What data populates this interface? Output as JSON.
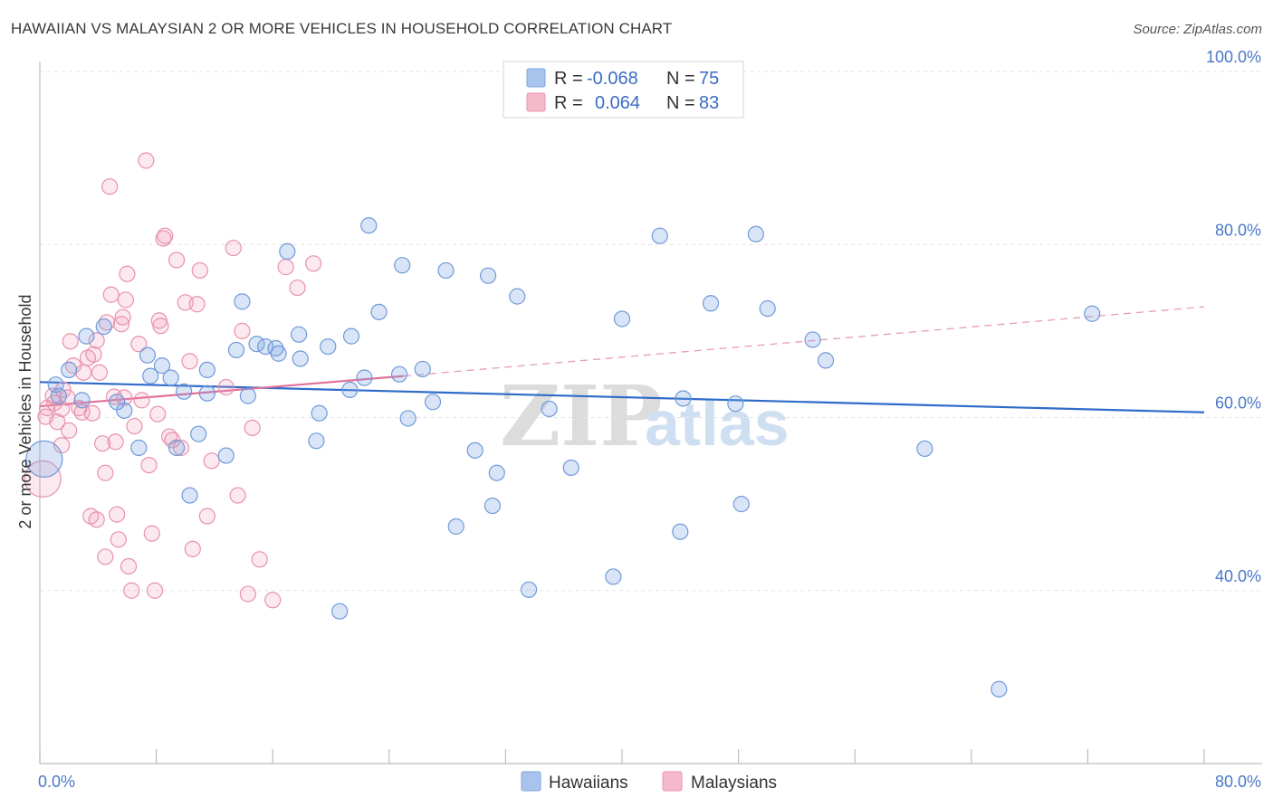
{
  "header": {
    "title": "HAWAIIAN VS MALAYSIAN 2 OR MORE VEHICLES IN HOUSEHOLD CORRELATION CHART",
    "source": "Source: ZipAtlas.com"
  },
  "watermark": {
    "zip": "ZIP",
    "atlas": "atlas"
  },
  "legend": {
    "rows": [
      {
        "r_label": "R =",
        "r_value": "-0.068",
        "n_label": "N =",
        "n_value": "75",
        "color": "#a8c4ec"
      },
      {
        "r_label": "R =",
        "r_value": "0.064",
        "n_label": "N =",
        "n_value": "83",
        "color": "#f6b9cc"
      }
    ]
  },
  "bottom_legend": [
    {
      "label": "Hawaiians",
      "color": "#a8c4ec"
    },
    {
      "label": "Malaysians",
      "color": "#f6b9cc"
    }
  ],
  "colors": {
    "hawaiian_fill": "rgba(120,160,225,0.28)",
    "hawaiian_stroke": "#6f9ad9",
    "hawaiian_line": "#2f6cc9",
    "malaysian_fill": "rgba(240,150,180,0.22)",
    "malaysian_stroke": "#e892ad",
    "malaysian_line": "#e0709a",
    "grid": "#e3e3e3",
    "axis": "#bdbdbd",
    "tick_text": "#4a78c9"
  },
  "chart_data": {
    "type": "scatter",
    "title": "HAWAIIAN VS MALAYSIAN 2 OR MORE VEHICLES IN HOUSEHOLD CORRELATION CHART",
    "xlabel": "",
    "ylabel": "2 or more Vehicles in Household",
    "xlim": [
      0,
      80
    ],
    "ylim": [
      20,
      100
    ],
    "x_tick_labels": [
      "0.0%",
      "80.0%"
    ],
    "y_ticks": [
      40,
      60,
      80,
      100
    ],
    "y_tick_labels": [
      "40.0%",
      "60.0%",
      "80.0%",
      "100.0%"
    ],
    "grid": true,
    "legend_position": "top-center",
    "series": [
      {
        "name": "Hawaiians",
        "R": -0.068,
        "N": 75,
        "trend": {
          "x": [
            0,
            80
          ],
          "y": [
            64.1,
            60.6
          ],
          "style": "solid"
        },
        "points": [
          [
            0.3,
            55.2,
            "large"
          ],
          [
            1.1,
            63.8
          ],
          [
            1.3,
            62.5
          ],
          [
            2.0,
            65.5
          ],
          [
            2.9,
            62.0
          ],
          [
            3.2,
            69.4
          ],
          [
            4.4,
            70.5
          ],
          [
            5.3,
            61.8
          ],
          [
            5.8,
            60.8
          ],
          [
            6.8,
            56.5
          ],
          [
            7.4,
            67.2
          ],
          [
            7.6,
            64.8
          ],
          [
            8.4,
            66.0
          ],
          [
            9.0,
            64.6
          ],
          [
            9.4,
            56.5
          ],
          [
            9.9,
            63.0
          ],
          [
            10.3,
            51.0
          ],
          [
            10.9,
            58.1
          ],
          [
            11.5,
            62.8
          ],
          [
            11.5,
            65.5
          ],
          [
            12.8,
            55.6
          ],
          [
            13.5,
            67.8
          ],
          [
            13.9,
            73.4
          ],
          [
            14.3,
            62.5
          ],
          [
            14.9,
            68.5
          ],
          [
            15.5,
            68.2
          ],
          [
            16.2,
            68.0
          ],
          [
            16.4,
            67.4
          ],
          [
            17.0,
            79.2
          ],
          [
            17.8,
            69.6
          ],
          [
            17.9,
            66.8
          ],
          [
            19.0,
            57.3
          ],
          [
            19.2,
            60.5
          ],
          [
            19.8,
            68.2
          ],
          [
            20.6,
            37.6
          ],
          [
            21.4,
            69.4
          ],
          [
            21.3,
            63.2
          ],
          [
            22.3,
            64.6
          ],
          [
            22.6,
            82.2
          ],
          [
            23.3,
            72.2
          ],
          [
            24.7,
            65.0
          ],
          [
            24.9,
            77.6
          ],
          [
            25.3,
            59.9
          ],
          [
            26.3,
            65.6
          ],
          [
            27.0,
            61.8
          ],
          [
            27.9,
            77.0
          ],
          [
            28.6,
            47.4
          ],
          [
            29.9,
            56.2
          ],
          [
            30.8,
            76.4
          ],
          [
            31.1,
            49.8
          ],
          [
            31.4,
            53.6
          ],
          [
            32.8,
            74.0
          ],
          [
            33.6,
            40.1
          ],
          [
            35.0,
            61.0
          ],
          [
            36.5,
            54.2
          ],
          [
            39.4,
            41.6
          ],
          [
            40.0,
            71.4
          ],
          [
            42.6,
            81.0
          ],
          [
            44.0,
            46.8
          ],
          [
            44.2,
            62.2
          ],
          [
            46.1,
            73.2
          ],
          [
            47.8,
            61.6
          ],
          [
            48.2,
            50.0
          ],
          [
            49.2,
            81.2
          ],
          [
            50.0,
            72.6
          ],
          [
            53.1,
            69.0
          ],
          [
            54.0,
            66.6
          ],
          [
            60.8,
            56.4
          ],
          [
            65.9,
            28.6
          ],
          [
            72.3,
            72.0
          ]
        ]
      },
      {
        "name": "Malaysians",
        "R": 0.064,
        "N": 83,
        "trend": {
          "x": [
            0,
            25
          ],
          "y": [
            61.3,
            64.8
          ],
          "style": "solid",
          "extension": {
            "x": [
              25,
              80
            ],
            "y": [
              64.8,
              72.8
            ],
            "style": "dashed"
          }
        },
        "points": [
          [
            0.2,
            52.9,
            "large"
          ],
          [
            0.4,
            60.1
          ],
          [
            0.5,
            61.1
          ],
          [
            0.9,
            62.5
          ],
          [
            1.0,
            61.7
          ],
          [
            1.2,
            59.5
          ],
          [
            1.5,
            56.8
          ],
          [
            1.5,
            61.0
          ],
          [
            1.6,
            63.2
          ],
          [
            1.9,
            62.3
          ],
          [
            2.0,
            58.5
          ],
          [
            2.1,
            68.8
          ],
          [
            2.3,
            66.0
          ],
          [
            2.7,
            61.1
          ],
          [
            2.9,
            60.6
          ],
          [
            3.0,
            65.2
          ],
          [
            3.3,
            66.9
          ],
          [
            3.5,
            48.6
          ],
          [
            3.6,
            60.5
          ],
          [
            3.7,
            67.3
          ],
          [
            3.9,
            68.9
          ],
          [
            3.9,
            48.2
          ],
          [
            4.1,
            65.2
          ],
          [
            4.3,
            57.0
          ],
          [
            4.5,
            53.6
          ],
          [
            4.5,
            43.9
          ],
          [
            4.6,
            71.0
          ],
          [
            4.8,
            86.7
          ],
          [
            4.9,
            74.2
          ],
          [
            5.1,
            62.4
          ],
          [
            5.2,
            57.2
          ],
          [
            5.3,
            48.8
          ],
          [
            5.4,
            45.9
          ],
          [
            5.6,
            70.8
          ],
          [
            5.7,
            71.6
          ],
          [
            5.8,
            62.3
          ],
          [
            5.9,
            73.6
          ],
          [
            6.0,
            76.6
          ],
          [
            6.1,
            42.8
          ],
          [
            6.3,
            40.0
          ],
          [
            6.5,
            59.0
          ],
          [
            6.8,
            68.5
          ],
          [
            7.0,
            62.0
          ],
          [
            7.3,
            89.7
          ],
          [
            7.5,
            54.5
          ],
          [
            7.7,
            46.6
          ],
          [
            7.9,
            40.0
          ],
          [
            8.1,
            60.4
          ],
          [
            8.2,
            71.2
          ],
          [
            8.3,
            70.6
          ],
          [
            8.5,
            80.7
          ],
          [
            8.6,
            81.0
          ],
          [
            8.9,
            57.8
          ],
          [
            9.1,
            57.4
          ],
          [
            9.4,
            78.2
          ],
          [
            9.7,
            56.5
          ],
          [
            10.0,
            73.3
          ],
          [
            10.3,
            66.5
          ],
          [
            10.5,
            44.8
          ],
          [
            10.8,
            73.1
          ],
          [
            11.0,
            77.0
          ],
          [
            11.5,
            48.6
          ],
          [
            11.8,
            55.0
          ],
          [
            12.8,
            63.5
          ],
          [
            13.3,
            79.6
          ],
          [
            13.6,
            51.0
          ],
          [
            13.9,
            70.0
          ],
          [
            14.3,
            39.6
          ],
          [
            14.6,
            58.8
          ],
          [
            15.1,
            43.6
          ],
          [
            16.0,
            38.9
          ],
          [
            16.9,
            77.4
          ],
          [
            17.7,
            75.0
          ],
          [
            18.8,
            77.8
          ]
        ]
      }
    ]
  }
}
